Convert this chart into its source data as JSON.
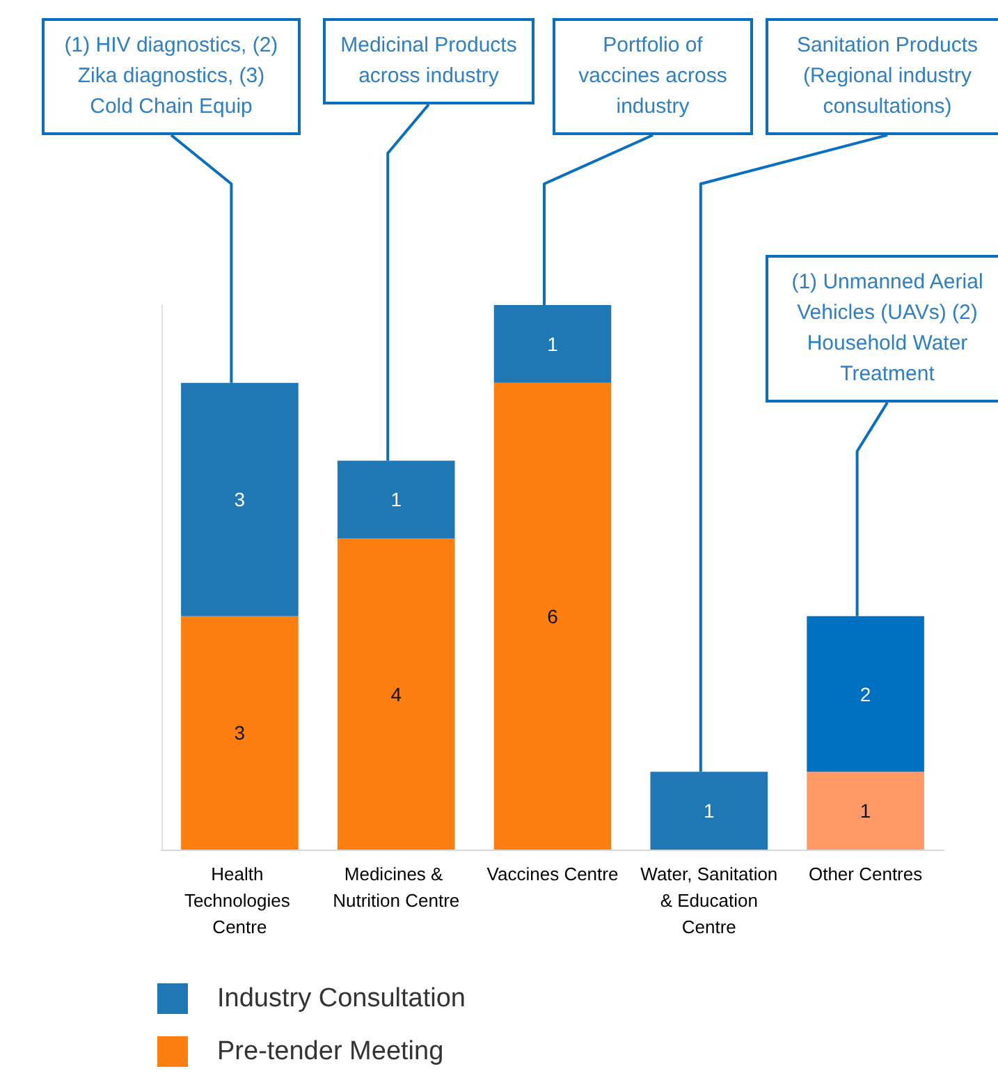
{
  "chart_data": {
    "type": "bar",
    "stacked": true,
    "categories": [
      "Health Technologies Centre",
      "Medicines & Nutrition Centre",
      "Vaccines Centre",
      "Water, Sanitation & Education Centre",
      "Other Centres"
    ],
    "series": [
      {
        "name": "Pre-tender Meeting",
        "color": "#fd7f0f",
        "colors": [
          "#fd7f0f",
          "#fd7f0f",
          "#fd7f0f",
          "#fd7f0f",
          "#ff9966"
        ],
        "values": [
          3,
          4,
          6,
          null,
          1
        ]
      },
      {
        "name": "Industry Consultation",
        "color": "#1f77b4",
        "colors": [
          "#1f77b4",
          "#1f77b4",
          "#1f77b4",
          "#1f77b4",
          "#0070c0"
        ],
        "values": [
          3,
          1,
          1,
          1,
          2
        ]
      }
    ],
    "data_labels": true,
    "legend": "bottom left",
    "grid": false,
    "tick_labels": "x",
    "annotations": [
      {
        "text": "(1) HIV diagnostics, (2) Zika diagnostics, (3) Cold Chain Equip",
        "x": "Health Technologies Centre",
        "y": 6
      },
      {
        "text": "Medicinal Products across industry",
        "x": "Medicines & Nutrition Centre",
        "y": 5
      },
      {
        "text": "Portfolio of vaccines across industry",
        "x": "Vaccines Centre",
        "y": 7
      },
      {
        "text": "Sanitation Products (Regional industry consultations)",
        "x": "Water, Sanitation & Education Centre",
        "y": 1
      },
      {
        "text": "(1) Unmanned Aerial Vehicles (UAVs) (2) Household Water Treatment",
        "x": "Other Centres",
        "y": 3
      }
    ]
  }
}
